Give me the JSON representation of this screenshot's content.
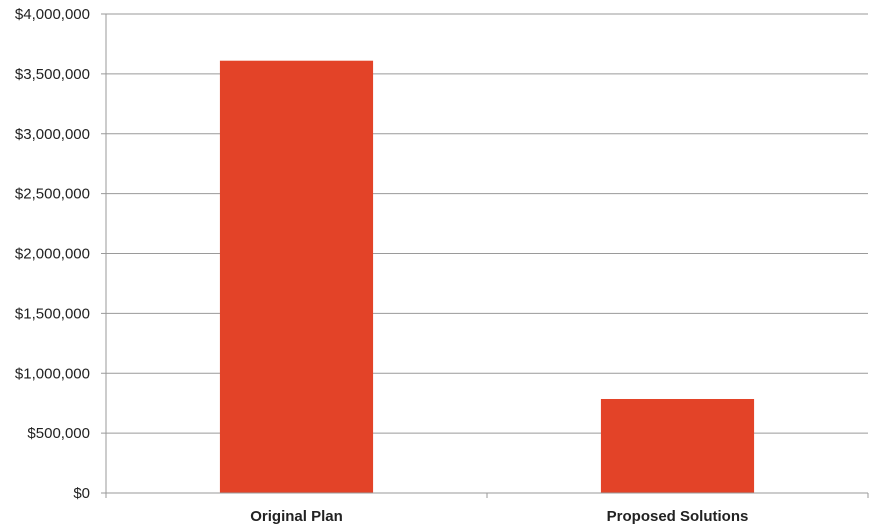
{
  "chart_data": {
    "type": "bar",
    "categories": [
      "Original Plan",
      "Proposed Solutions"
    ],
    "values": [
      3610000,
      785000
    ],
    "ylim": [
      0,
      4000000
    ],
    "y_ticks": [
      0,
      500000,
      1000000,
      1500000,
      2000000,
      2500000,
      3000000,
      3500000,
      4000000
    ],
    "y_tick_labels": [
      "$0",
      "$500,000",
      "$1,000,000",
      "$1,500,000",
      "$2,000,000",
      "$2,500,000",
      "$3,000,000",
      "$3,500,000",
      "$4,000,000"
    ],
    "title": "",
    "xlabel": "",
    "ylabel": "",
    "grid": true,
    "legend": "none",
    "bar_color": "#e34328",
    "grid_color": "#9a9a9a"
  }
}
